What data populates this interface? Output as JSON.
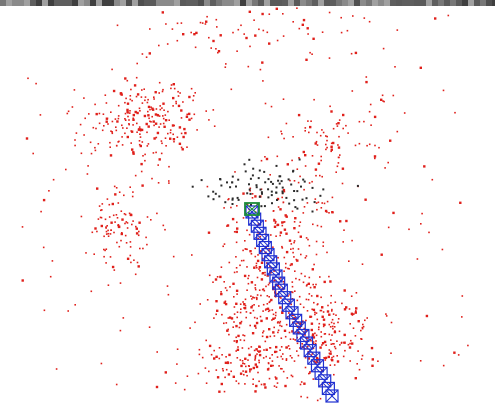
{
  "viewer": {
    "background": "#ffffff",
    "topbar_colors": [
      "#4f4f4f",
      "#8a8a8a",
      "#5e5e5e",
      "#a0a0a0",
      "#3f3f3f",
      "#777777",
      "#5a5a5a"
    ]
  },
  "colors": {
    "map_point": "#e0201b",
    "active_point": "#2b2b2b",
    "camera_frame": "#1f2fd0",
    "current_camera": "#1a8a3a"
  },
  "icons": {
    "camera_frame": "camera-frustum-icon",
    "current_camera": "current-camera-icon"
  },
  "counts": {
    "map_points": 1400,
    "active_points": 90,
    "keyframes": 26
  }
}
